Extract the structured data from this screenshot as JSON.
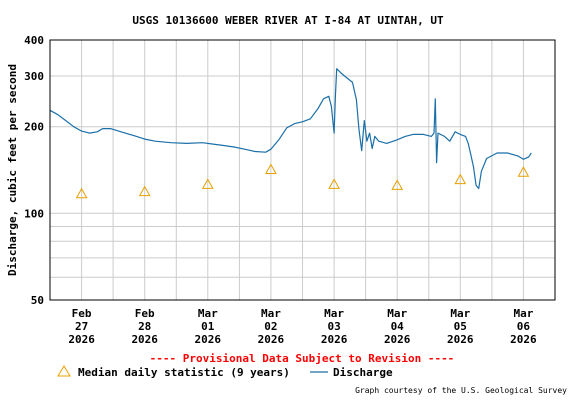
{
  "chart_data": {
    "type": "line",
    "title": "USGS 10136600 WEBER RIVER AT I-84 AT UINTAH, UT",
    "ylabel": "Discharge, cubic feet per second",
    "y_scale": "log",
    "ylim": [
      50,
      400
    ],
    "y_ticks": [
      {
        "value": 50,
        "label": "50"
      },
      {
        "value": 100,
        "label": "100"
      },
      {
        "value": 200,
        "label": "200"
      },
      {
        "value": 300,
        "label": "300"
      },
      {
        "value": 400,
        "label": "400"
      }
    ],
    "x_ticks": [
      {
        "month": "Feb",
        "day": "27",
        "year": "2026"
      },
      {
        "month": "Feb",
        "day": "28",
        "year": "2026"
      },
      {
        "month": "Mar",
        "day": "01",
        "year": "2026"
      },
      {
        "month": "Mar",
        "day": "02",
        "year": "2026"
      },
      {
        "month": "Mar",
        "day": "03",
        "year": "2026"
      },
      {
        "month": "Mar",
        "day": "04",
        "year": "2026"
      },
      {
        "month": "Mar",
        "day": "05",
        "year": "2026"
      },
      {
        "month": "Mar",
        "day": "06",
        "year": "2026"
      }
    ],
    "xlim": [
      "2026-02-26 12:00",
      "2026-03-06 12:00"
    ],
    "grid": true,
    "legend_position": "bottom",
    "series": [
      {
        "name": "Discharge",
        "type": "line",
        "color": "#1a6fa8",
        "points": [
          [
            "2026-02-26 12:00",
            228
          ],
          [
            "2026-02-26 15:00",
            220
          ],
          [
            "2026-02-26 18:00",
            210
          ],
          [
            "2026-02-26 21:00",
            200
          ],
          [
            "2026-02-27 00:00",
            193
          ],
          [
            "2026-02-27 03:00",
            190
          ],
          [
            "2026-02-27 06:00",
            192
          ],
          [
            "2026-02-27 08:00",
            197
          ],
          [
            "2026-02-27 11:00",
            197
          ],
          [
            "2026-02-27 15:00",
            192
          ],
          [
            "2026-02-27 20:00",
            186
          ],
          [
            "2026-02-28 00:00",
            181
          ],
          [
            "2026-02-28 04:00",
            178
          ],
          [
            "2026-02-28 10:00",
            176
          ],
          [
            "2026-02-28 16:00",
            175
          ],
          [
            "2026-02-28 22:00",
            176
          ],
          [
            "2026-03-01 02:00",
            174
          ],
          [
            "2026-03-01 06:00",
            172
          ],
          [
            "2026-03-01 10:00",
            170
          ],
          [
            "2026-03-01 14:00",
            167
          ],
          [
            "2026-03-01 18:00",
            164
          ],
          [
            "2026-03-01 22:00",
            163
          ],
          [
            "2026-03-02 00:00",
            167
          ],
          [
            "2026-03-02 03:00",
            180
          ],
          [
            "2026-03-02 06:00",
            198
          ],
          [
            "2026-03-02 09:00",
            205
          ],
          [
            "2026-03-02 12:00",
            208
          ],
          [
            "2026-03-02 15:00",
            213
          ],
          [
            "2026-03-02 18:00",
            232
          ],
          [
            "2026-03-02 20:00",
            250
          ],
          [
            "2026-03-02 22:00",
            255
          ],
          [
            "2026-03-02 23:00",
            235
          ],
          [
            "2026-03-03 00:00",
            190
          ],
          [
            "2026-03-03 00:30",
            255
          ],
          [
            "2026-03-03 01:00",
            318
          ],
          [
            "2026-03-03 03:00",
            305
          ],
          [
            "2026-03-03 05:00",
            295
          ],
          [
            "2026-03-03 07:00",
            285
          ],
          [
            "2026-03-03 08:30",
            248
          ],
          [
            "2026-03-03 09:30",
            195
          ],
          [
            "2026-03-03 10:30",
            165
          ],
          [
            "2026-03-03 11:30",
            210
          ],
          [
            "2026-03-03 12:30",
            178
          ],
          [
            "2026-03-03 13:30",
            190
          ],
          [
            "2026-03-03 14:30",
            168
          ],
          [
            "2026-03-03 15:30",
            185
          ],
          [
            "2026-03-03 17:00",
            178
          ],
          [
            "2026-03-03 20:00",
            175
          ],
          [
            "2026-03-04 00:00",
            180
          ],
          [
            "2026-03-04 03:00",
            185
          ],
          [
            "2026-03-04 06:00",
            188
          ],
          [
            "2026-03-04 10:00",
            188
          ],
          [
            "2026-03-04 13:00",
            185
          ],
          [
            "2026-03-04 14:00",
            190
          ],
          [
            "2026-03-04 14:30",
            250
          ],
          [
            "2026-03-04 15:00",
            150
          ],
          [
            "2026-03-04 15:30",
            190
          ],
          [
            "2026-03-04 18:00",
            185
          ],
          [
            "2026-03-04 20:00",
            178
          ],
          [
            "2026-03-04 22:00",
            192
          ],
          [
            "2026-03-05 00:00",
            188
          ],
          [
            "2026-03-05 02:00",
            185
          ],
          [
            "2026-03-05 03:00",
            175
          ],
          [
            "2026-03-05 04:00",
            160
          ],
          [
            "2026-03-05 05:00",
            145
          ],
          [
            "2026-03-05 06:00",
            125
          ],
          [
            "2026-03-05 07:00",
            122
          ],
          [
            "2026-03-05 08:00",
            140
          ],
          [
            "2026-03-05 10:00",
            155
          ],
          [
            "2026-03-05 14:00",
            162
          ],
          [
            "2026-03-05 18:00",
            162
          ],
          [
            "2026-03-05 22:00",
            158
          ],
          [
            "2026-03-06 00:00",
            154
          ],
          [
            "2026-03-06 02:00",
            157
          ],
          [
            "2026-03-06 03:00",
            162
          ]
        ]
      },
      {
        "name": "Median daily statistic (9 years)",
        "type": "marker",
        "marker": "triangle",
        "color": "#e8a000",
        "points": [
          [
            "2026-02-27 00:00",
            117
          ],
          [
            "2026-02-28 00:00",
            119
          ],
          [
            "2026-03-01 00:00",
            126
          ],
          [
            "2026-03-02 00:00",
            142
          ],
          [
            "2026-03-03 00:00",
            126
          ],
          [
            "2026-03-04 00:00",
            125
          ],
          [
            "2026-03-05 00:00",
            131
          ],
          [
            "2026-03-06 00:00",
            139
          ]
        ]
      }
    ]
  },
  "notice": "---- Provisional Data Subject to Revision ----",
  "notice_color": "#ff0000",
  "credit": "Graph courtesy of the U.S. Geological Survey",
  "colors": {
    "plot_border": "#000000",
    "grid": "#cccccc"
  }
}
